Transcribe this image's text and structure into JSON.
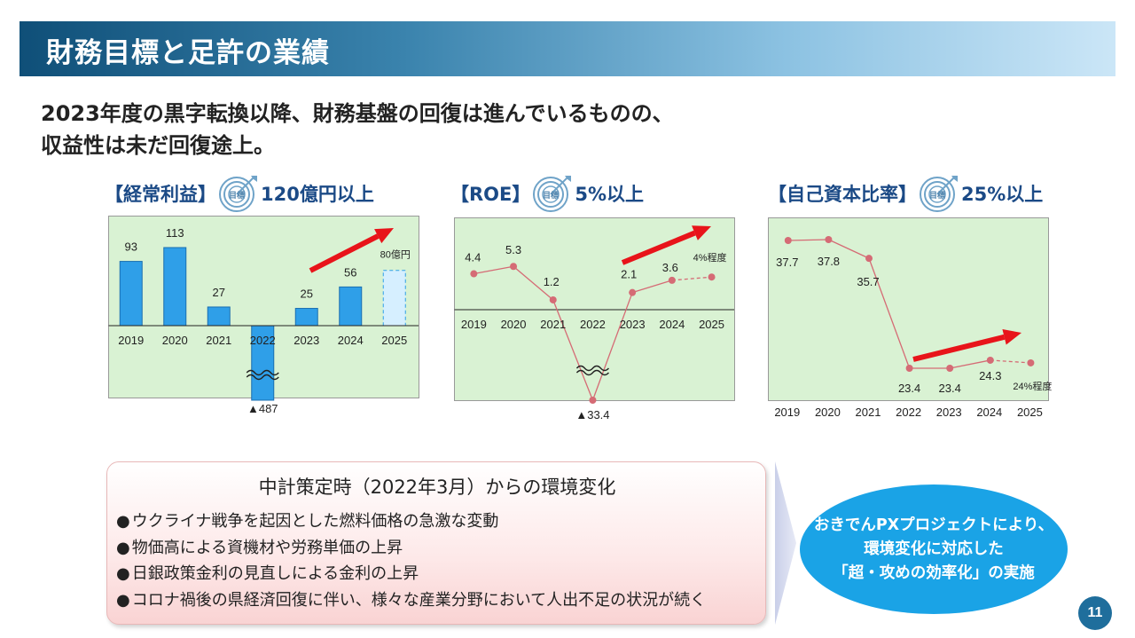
{
  "header": {
    "title": "財務目標と足許の業績"
  },
  "headline": {
    "line1": "2023年度の黒字転換以降、財務基盤の回復は進んでいるものの、",
    "line2": "収益性は未だ回復途上。"
  },
  "target_icon_label": "目標",
  "kpis": [
    {
      "name": "【経常利益】",
      "target": "120億円以上"
    },
    {
      "name": "【ROE】",
      "target": "5%以上"
    },
    {
      "name": "【自己資本比率】",
      "target": "25%以上"
    }
  ],
  "colors": {
    "bar": "#2f9fe8",
    "bar_forecast": "#d6efff",
    "line": "#d56b75",
    "arrow": "#e8141a",
    "plot_bg": "#d9f2d3"
  },
  "chart_data": [
    {
      "type": "bar",
      "categories": [
        "2019",
        "2020",
        "2021",
        "2022",
        "2023",
        "2024",
        "2025"
      ],
      "values": [
        93,
        113,
        27,
        -487,
        25,
        56,
        80
      ],
      "labels": [
        "93",
        "113",
        "27",
        "▲487",
        "25",
        "56",
        "80億円"
      ],
      "forecast_index": 6,
      "axis_break": "2022"
    },
    {
      "type": "line",
      "categories": [
        "2019",
        "2020",
        "2021",
        "2022",
        "2023",
        "2024",
        "2025"
      ],
      "values": [
        4.4,
        5.3,
        1.2,
        -33.4,
        2.1,
        3.6,
        4
      ],
      "labels": [
        "4.4",
        "5.3",
        "1.2",
        "▲33.4",
        "2.1",
        "3.6",
        "4%程度"
      ],
      "forecast_from_index": 5,
      "axis_break": "2022"
    },
    {
      "type": "line",
      "categories": [
        "2019",
        "2020",
        "2021",
        "2022",
        "2023",
        "2024",
        "2025"
      ],
      "values": [
        37.7,
        37.8,
        35.7,
        23.4,
        23.4,
        24.3,
        24
      ],
      "labels": [
        "37.7",
        "37.8",
        "35.7",
        "23.4",
        "23.4",
        "24.3",
        "24%程度"
      ],
      "forecast_from_index": 5
    }
  ],
  "environment": {
    "title": "中計策定時（2022年3月）からの環境変化",
    "items": [
      "ウクライナ戦争を起因とした燃料価格の急激な変動",
      "物価高による資機材や労務単価の上昇",
      "日銀政策金利の見直しによる金利の上昇",
      "コロナ禍後の県経済回復に伴い、様々な産業分野において人出不足の状況が続く"
    ]
  },
  "initiative": {
    "line1": "おきでんPXプロジェクトにより、",
    "line2": "環境変化に対応した",
    "line3": "「超・攻めの効率化」の実施"
  },
  "page_number": "11"
}
